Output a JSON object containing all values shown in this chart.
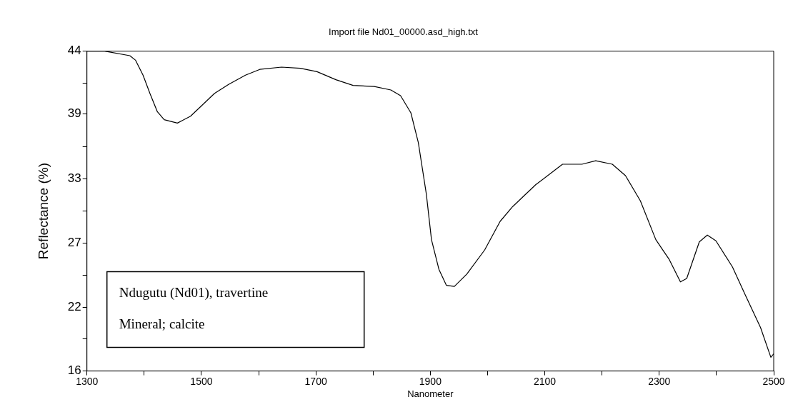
{
  "chart_data": {
    "type": "line",
    "title": "Import file Nd01_00000.asd_high.txt",
    "xlabel": "Nanometer",
    "ylabel": "Reflectance (%)",
    "annotations": [
      "Ndugutu (Nd01), travertine",
      "Mineral; calcite"
    ],
    "xlim": [
      1300,
      2500
    ],
    "ylim": [
      16,
      44
    ],
    "xticks": [
      1300,
      {
        "value": 1400,
        "label": null
      },
      1500,
      {
        "value": 1600,
        "label": null
      },
      1700,
      {
        "value": 1800,
        "label": null
      },
      1900,
      {
        "value": 2000,
        "label": null
      },
      2100,
      {
        "value": 2200,
        "label": null
      },
      2300,
      {
        "value": 2400,
        "label": null
      },
      2500
    ],
    "yticks": [
      {
        "value": 16,
        "label": "16"
      },
      {
        "value": 18.8,
        "label": null
      },
      {
        "value": 21.6,
        "label": "22"
      },
      {
        "value": 24.4,
        "label": null
      },
      {
        "value": 27.2,
        "label": "27"
      },
      {
        "value": 30,
        "label": null
      },
      {
        "value": 32.8,
        "label": "33"
      },
      {
        "value": 35.6,
        "label": null
      },
      {
        "value": 38.5,
        "label": "39"
      },
      {
        "value": 41.2,
        "label": null
      },
      {
        "value": 44,
        "label": "44"
      }
    ],
    "grid": false,
    "legend": false,
    "marker": "none",
    "line_style": "solid",
    "series": [
      {
        "color": "#000000",
        "x": [
          1300,
          1331,
          1375,
          1385,
          1398,
          1410,
          1423,
          1435,
          1458,
          1481,
          1502,
          1523,
          1548,
          1577,
          1602,
          1640,
          1673,
          1702,
          1735,
          1765,
          1802,
          1831,
          1848,
          1866,
          1879,
          1893,
          1902,
          1915,
          1928,
          1942,
          1964,
          1995,
          2022,
          2044,
          2084,
          2131,
          2165,
          2189,
          2218,
          2241,
          2267,
          2294,
          2317,
          2337,
          2348,
          2370,
          2384,
          2399,
          2428,
          2450,
          2477,
          2495,
          2500
        ],
        "values": [
          44.0,
          44.0,
          43.6,
          43.2,
          41.9,
          40.3,
          38.7,
          38.0,
          37.7,
          38.3,
          39.3,
          40.3,
          41.1,
          41.9,
          42.4,
          42.6,
          42.5,
          42.2,
          41.5,
          41.0,
          40.9,
          40.6,
          40.1,
          38.6,
          36.0,
          31.5,
          27.5,
          24.9,
          23.5,
          23.4,
          24.5,
          26.6,
          29.1,
          30.4,
          32.3,
          34.1,
          34.1,
          34.4,
          34.1,
          33.1,
          30.9,
          27.5,
          25.8,
          23.8,
          24.1,
          27.3,
          27.9,
          27.4,
          25.1,
          22.7,
          19.8,
          17.2,
          17.5
        ]
      }
    ]
  }
}
